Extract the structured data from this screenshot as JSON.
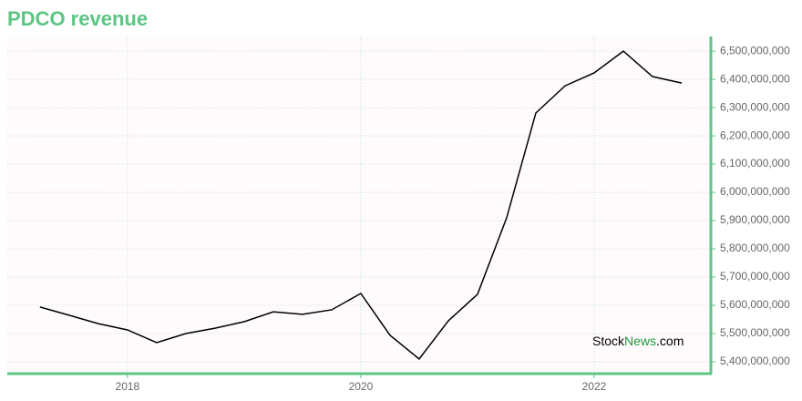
{
  "chart_data": {
    "type": "line",
    "title": "PDCO revenue",
    "x": [
      2017.25,
      2017.5,
      2017.75,
      2018,
      2018.25,
      2018.5,
      2018.75,
      2019,
      2019.25,
      2019.5,
      2019.75,
      2020,
      2020.25,
      2020.5,
      2020.75,
      2021,
      2021.25,
      2021.5,
      2021.75,
      2022,
      2022.25,
      2022.5,
      2022.75
    ],
    "series": [
      {
        "name": "PDCO revenue",
        "color": "#000000",
        "values": [
          5594000000,
          5565000000,
          5535000000,
          5513000000,
          5468000000,
          5500000000,
          5519000000,
          5542000000,
          5577000000,
          5568000000,
          5584000000,
          5642000000,
          5494000000,
          5410000000,
          5545000000,
          5639000000,
          5910000000,
          6281000000,
          6377000000,
          6423000000,
          6500000000,
          6410000000,
          6387000000
        ]
      }
    ],
    "xlim": [
      2016.97,
      2023
    ],
    "xticks": [
      2018,
      2020,
      2022
    ],
    "ylim": [
      5358000000,
      6552000000
    ],
    "yticks": [
      {
        "value": 5400000000,
        "label": "5,400,000,000"
      },
      {
        "value": 5500000000,
        "label": "5,500,000,000"
      },
      {
        "value": 5600000000,
        "label": "5,600,000,000"
      },
      {
        "value": 5700000000,
        "label": "5,700,000,000"
      },
      {
        "value": 5800000000,
        "label": "5,800,000,000"
      },
      {
        "value": 5900000000,
        "label": "5,900,000,000"
      },
      {
        "value": 6000000000,
        "label": "6,000,000,000"
      },
      {
        "value": 6100000000,
        "label": "6,100,000,000"
      },
      {
        "value": 6200000000,
        "label": "6,200,000,000"
      },
      {
        "value": 6300000000,
        "label": "6,300,000,000"
      },
      {
        "value": 6400000000,
        "label": "6,400,000,000"
      },
      {
        "value": 6500000000,
        "label": "6,500,000,000"
      }
    ],
    "grid": true,
    "axis_color": "#5cc584",
    "watermark": [
      {
        "text": "Stock",
        "color": "#000000"
      },
      {
        "text": "News",
        "color": "#1e9a3e"
      },
      {
        "text": ".com",
        "color": "#000000"
      }
    ]
  }
}
